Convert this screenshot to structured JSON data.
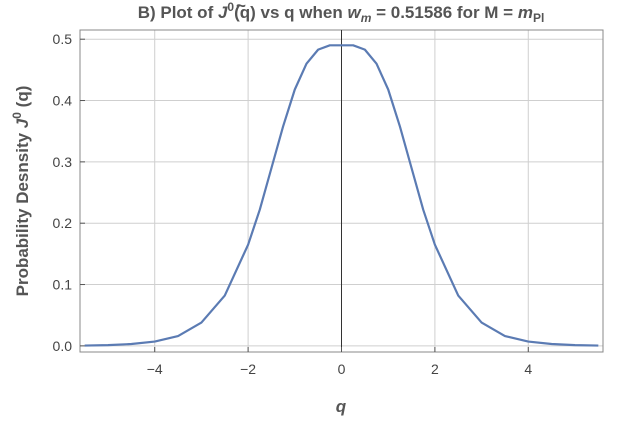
{
  "chart_data": {
    "type": "line",
    "title_parts": {
      "prefix": "B) Plot of ",
      "func": "J",
      "func_mark": "~",
      "func_sup": "0",
      "mid": "(q) vs q when ",
      "var": "w",
      "var_sub": "m",
      "after_var": " = 0.51586 for M = ",
      "mass": "m",
      "mass_sub": "Pl"
    },
    "xlabel": "q",
    "ylabel_parts": {
      "prefix": "Probability  Desnsity ",
      "func": "J",
      "func_mark": "~",
      "func_sup": "0",
      "suffix": " (q)"
    },
    "xlim": [
      -5.6,
      5.6
    ],
    "ylim": [
      -0.01,
      0.515
    ],
    "xticks": [
      -4,
      -2,
      0,
      2,
      4
    ],
    "xtick_labels": [
      "−4",
      "−2",
      "0",
      "2",
      "4"
    ],
    "yticks": [
      0.0,
      0.1,
      0.2,
      0.3,
      0.4,
      0.5
    ],
    "ytick_labels": [
      "0.0",
      "0.1",
      "0.2",
      "0.3",
      "0.4",
      "0.5"
    ],
    "grid": true,
    "color": "#5b7bb3",
    "series": [
      {
        "x": [
          -5.5,
          -5.0,
          -4.5,
          -4.0,
          -3.5,
          -3.0,
          -2.5,
          -2.0,
          -1.75,
          -1.5,
          -1.25,
          -1.0,
          -0.75,
          -0.5,
          -0.25,
          0.0,
          0.25,
          0.5,
          0.75,
          1.0,
          1.25,
          1.5,
          1.75,
          2.0,
          2.5,
          3.0,
          3.5,
          4.0,
          4.5,
          5.0,
          5.5
        ],
        "y": [
          0.0005,
          0.0012,
          0.003,
          0.007,
          0.016,
          0.038,
          0.082,
          0.165,
          0.222,
          0.29,
          0.358,
          0.418,
          0.46,
          0.483,
          0.49,
          0.49,
          0.49,
          0.483,
          0.46,
          0.418,
          0.358,
          0.29,
          0.222,
          0.165,
          0.082,
          0.038,
          0.016,
          0.007,
          0.003,
          0.0012,
          0.0005
        ]
      }
    ]
  }
}
